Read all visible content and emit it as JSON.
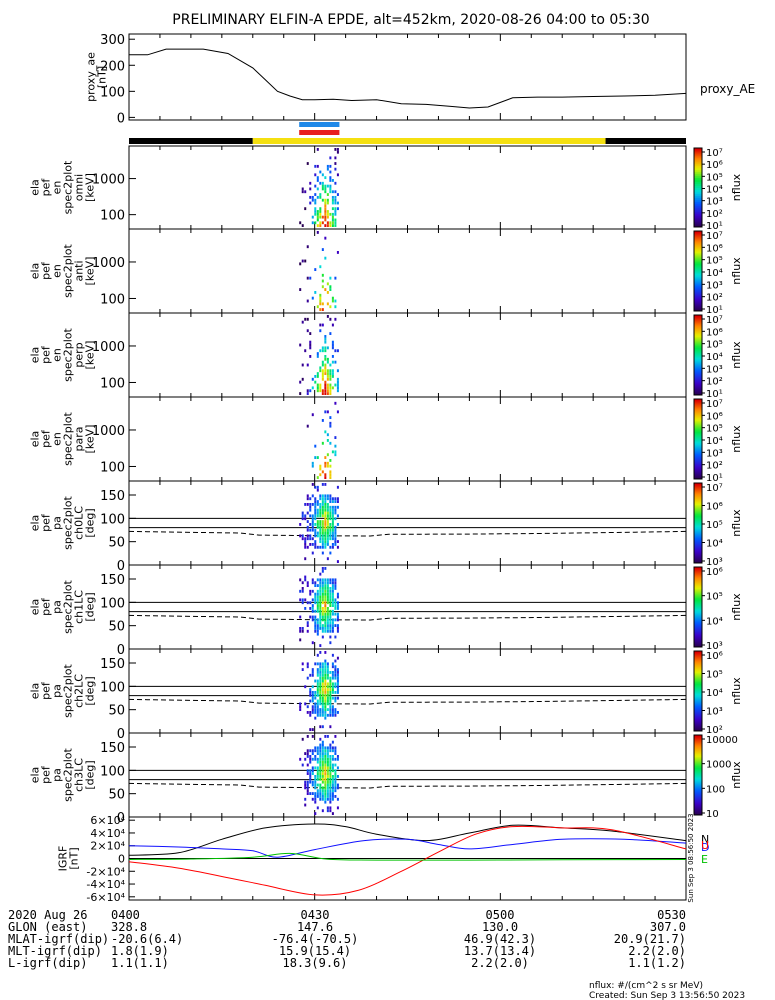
{
  "title": "PRELIMINARY ELFIN-A EPDE, alt=452km, 2020-08-26 04:00 to 05:30",
  "colors": {
    "ae_line": "#000000",
    "bar_black": "#000000",
    "bar_yellow": "#f5e010",
    "blue_marker": "#1e88e8",
    "red_marker": "#e81e1e",
    "grf_n": "#000000",
    "grf_d": "#1010ff",
    "grf_u": "#ff0000",
    "grf_e": "#00c000"
  },
  "chart_data": [
    {
      "id": "proxy_ae",
      "type": "line",
      "ylabel_lines": [
        "proxy_ae",
        "[nT]"
      ],
      "legend": "proxy_AE",
      "yticks": [
        "0",
        "100",
        "200",
        "300"
      ],
      "ylim": [
        -10,
        320
      ],
      "x_minutes": [
        0,
        3,
        6,
        12,
        16,
        20,
        22,
        24,
        26,
        28,
        30,
        33,
        36,
        40,
        44,
        48,
        52,
        55,
        58,
        62,
        66,
        70,
        75,
        80,
        85,
        90
      ],
      "values": [
        240,
        240,
        262,
        262,
        245,
        190,
        145,
        100,
        82,
        68,
        68,
        70,
        65,
        68,
        52,
        50,
        42,
        36,
        40,
        75,
        78,
        78,
        80,
        82,
        85,
        92
      ]
    },
    {
      "id": "spec_omni",
      "type": "heatmap",
      "ylabel_lines": [
        "ela",
        "pef",
        "en",
        "spec2plot",
        "omni",
        "[keV]"
      ],
      "yticks": [
        "100",
        "1000"
      ],
      "colorbar": {
        "label": "nflux",
        "ticks": [
          "10¹",
          "10²",
          "10³",
          "10⁴",
          "10⁵",
          "10⁶",
          "10⁷"
        ]
      }
    },
    {
      "id": "spec_anti",
      "type": "heatmap",
      "ylabel_lines": [
        "ela",
        "pef",
        "en",
        "spec2plot",
        "anti",
        "[keV]"
      ],
      "yticks": [
        "100",
        "1000"
      ],
      "colorbar": {
        "label": "nflux",
        "ticks": [
          "10¹",
          "10²",
          "10³",
          "10⁴",
          "10⁵",
          "10⁶",
          "10⁷"
        ]
      }
    },
    {
      "id": "spec_perp",
      "type": "heatmap",
      "ylabel_lines": [
        "ela",
        "pef",
        "en",
        "spec2plot",
        "perp",
        "[keV]"
      ],
      "yticks": [
        "100",
        "1000"
      ],
      "colorbar": {
        "label": "nflux",
        "ticks": [
          "10¹",
          "10²",
          "10³",
          "10⁴",
          "10⁵",
          "10⁶",
          "10⁷"
        ]
      }
    },
    {
      "id": "spec_para",
      "type": "heatmap",
      "ylabel_lines": [
        "ela",
        "pef",
        "en",
        "spec2plot",
        "para",
        "[keV]"
      ],
      "yticks": [
        "100",
        "1000"
      ],
      "colorbar": {
        "label": "nflux",
        "ticks": [
          "10¹",
          "10²",
          "10³",
          "10⁴",
          "10⁵",
          "10⁶",
          "10⁷"
        ]
      }
    },
    {
      "id": "pa_ch0",
      "type": "heatmap",
      "ylabel_lines": [
        "ela",
        "pef",
        "pa",
        "spec2plot",
        "ch0LC",
        "[deg]"
      ],
      "yticks": [
        "0",
        "50",
        "100",
        "150"
      ],
      "colorbar": {
        "label": "nflux",
        "ticks": [
          "10³",
          "10⁴",
          "10⁵",
          "10⁶",
          "10⁷"
        ]
      }
    },
    {
      "id": "pa_ch1",
      "type": "heatmap",
      "ylabel_lines": [
        "ela",
        "pef",
        "pa",
        "spec2plot",
        "ch1LC",
        "[deg]"
      ],
      "yticks": [
        "0",
        "50",
        "100",
        "150"
      ],
      "colorbar": {
        "label": "nflux",
        "ticks": [
          "10³",
          "10⁴",
          "10⁵",
          "10⁶"
        ]
      }
    },
    {
      "id": "pa_ch2",
      "type": "heatmap",
      "ylabel_lines": [
        "ela",
        "pef",
        "pa",
        "spec2plot",
        "ch2LC",
        "[deg]"
      ],
      "yticks": [
        "0",
        "50",
        "100",
        "150"
      ],
      "colorbar": {
        "label": "nflux",
        "ticks": [
          "10²",
          "10³",
          "10⁴",
          "10⁵",
          "10⁶"
        ]
      }
    },
    {
      "id": "pa_ch3",
      "type": "heatmap",
      "ylabel_lines": [
        "ela",
        "pef",
        "pa",
        "spec2plot",
        "ch3LC",
        "[deg]"
      ],
      "yticks": [
        "0",
        "50",
        "100",
        "150"
      ],
      "colorbar": {
        "label": "nflux",
        "ticks": [
          "10",
          "100",
          "1000",
          "10000"
        ]
      }
    },
    {
      "id": "igrf",
      "type": "line",
      "ylabel_lines": [
        "IGRF",
        "[nT]"
      ],
      "yticks": [
        "-6×10⁴",
        "-4×10⁴",
        "-2×10⁴",
        "0",
        "2×10⁴",
        "4×10⁴",
        "6×10⁴"
      ],
      "ylim": [
        -65000,
        65000
      ],
      "legend": [
        "N",
        "D",
        "U",
        "E"
      ],
      "series": [
        {
          "name": "N",
          "x": [
            0,
            8,
            15,
            22,
            30,
            35,
            40,
            48,
            55,
            62,
            70,
            78,
            90
          ],
          "values": [
            5000,
            9000,
            30000,
            48000,
            54000,
            50000,
            38000,
            28000,
            40000,
            52000,
            48000,
            43000,
            28000
          ]
        },
        {
          "name": "D",
          "x": [
            0,
            8,
            15,
            20,
            24,
            30,
            38,
            45,
            50,
            55,
            62,
            70,
            80,
            90
          ],
          "values": [
            20000,
            18000,
            15000,
            12000,
            2000,
            14000,
            28000,
            30000,
            22000,
            15000,
            22000,
            30000,
            30000,
            24000
          ]
        },
        {
          "name": "U",
          "x": [
            0,
            8,
            16,
            22,
            30,
            37,
            44,
            50,
            56,
            62,
            70,
            78,
            90
          ],
          "values": [
            -5000,
            -15000,
            -30000,
            -42000,
            -57000,
            -50000,
            -20000,
            10000,
            38000,
            50000,
            48000,
            45000,
            15000
          ]
        },
        {
          "name": "E",
          "x": [
            0,
            10,
            20,
            26,
            32,
            40,
            55,
            70,
            90
          ],
          "values": [
            -1500,
            -800,
            2000,
            8000,
            -1000,
            -2500,
            -2500,
            -2000,
            -1500
          ]
        }
      ]
    }
  ],
  "xaxis": {
    "ticks": [
      "0400",
      "0430",
      "0500",
      "0530"
    ],
    "rows": [
      {
        "label": "2020 Aug 26",
        "values": [
          "0400",
          "0430",
          "0500",
          "0530"
        ]
      },
      {
        "label": "GLON (east)",
        "values": [
          "328.8",
          "147.6",
          "130.0",
          "307.0"
        ]
      },
      {
        "label": "MLAT-igrf(dip)",
        "values": [
          "-20.6(6.4)",
          "-76.4(-70.5)",
          "46.9(42.3)",
          "20.9(21.7)"
        ]
      },
      {
        "label": "MLT-igrf(dip)",
        "values": [
          "1.8(1.9)",
          "15.9(15.4)",
          "13.7(13.4)",
          "2.2(2.0)"
        ]
      },
      {
        "label": "L-igrf(dip)",
        "values": [
          "1.1(1.1)",
          "18.3(9.6)",
          "2.2(2.0)",
          "1.1(1.2)"
        ]
      }
    ]
  },
  "footer": {
    "units": "nflux: #/(cm^2 s sr MeV)",
    "created": "Created: Sun Sep  3 13:56:50 2023",
    "stamp": "Sun Sep  3 08:56:50 2023"
  }
}
